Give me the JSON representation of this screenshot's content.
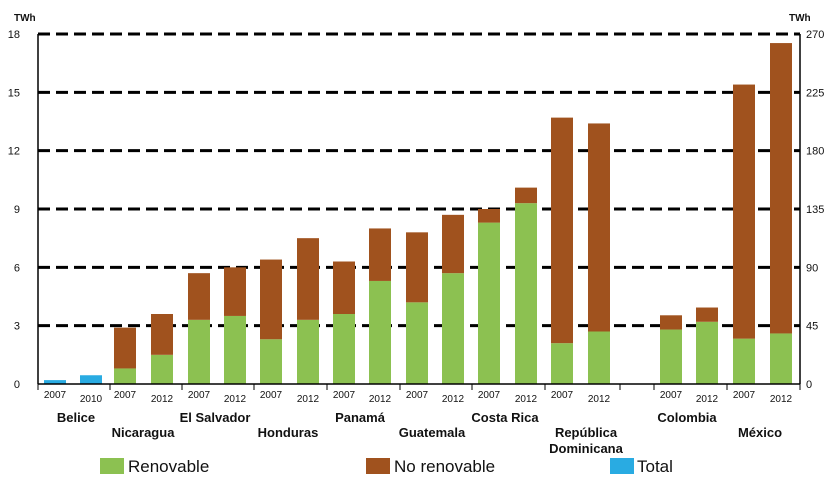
{
  "chart_data": {
    "type": "bar",
    "stacked": true,
    "left_axis": {
      "unit": "TWh",
      "ylim": [
        0,
        18
      ],
      "ticks": [
        0,
        3,
        6,
        9,
        12,
        15,
        18
      ]
    },
    "right_axis": {
      "unit": "TWh",
      "ylim": [
        0,
        270
      ],
      "ticks": [
        0,
        45,
        90,
        135,
        180,
        225,
        270
      ]
    },
    "grid": "dashed-horizontal",
    "legend_position": "bottom",
    "series_colors": {
      "renovable": "#8cc151",
      "no_renovable": "#a0521e",
      "total": "#29abe2"
    },
    "legend": [
      {
        "key": "renovable",
        "label": "Renovable"
      },
      {
        "key": "no_renovable",
        "label": "No renovable"
      },
      {
        "key": "total",
        "label": "Total"
      }
    ],
    "groups": [
      {
        "country": "Belice",
        "axis": "left",
        "label_row": 0,
        "bars": [
          {
            "year": "2007",
            "total": 0.2
          },
          {
            "year": "2010",
            "total": 0.45
          }
        ]
      },
      {
        "country": "Nicaragua",
        "axis": "left",
        "label_row": 1,
        "bars": [
          {
            "year": "2007",
            "renovable": 0.8,
            "no_renovable": 2.1
          },
          {
            "year": "2012",
            "renovable": 1.5,
            "no_renovable": 2.1
          }
        ]
      },
      {
        "country": "El Salvador",
        "axis": "left",
        "label_row": 0,
        "bars": [
          {
            "year": "2007",
            "renovable": 3.3,
            "no_renovable": 2.4
          },
          {
            "year": "2012",
            "renovable": 3.5,
            "no_renovable": 2.5
          }
        ]
      },
      {
        "country": "Honduras",
        "axis": "left",
        "label_row": 1,
        "bars": [
          {
            "year": "2007",
            "renovable": 2.3,
            "no_renovable": 4.1
          },
          {
            "year": "2012",
            "renovable": 3.3,
            "no_renovable": 4.2
          }
        ]
      },
      {
        "country": "Panamá",
        "axis": "left",
        "label_row": 0,
        "bars": [
          {
            "year": "2007",
            "renovable": 3.6,
            "no_renovable": 2.7
          },
          {
            "year": "2012",
            "renovable": 5.3,
            "no_renovable": 2.7
          }
        ]
      },
      {
        "country": "Guatemala",
        "axis": "left",
        "label_row": 1,
        "bars": [
          {
            "year": "2007",
            "renovable": 4.2,
            "no_renovable": 3.6
          },
          {
            "year": "2012",
            "renovable": 5.7,
            "no_renovable": 3.0
          }
        ]
      },
      {
        "country": "Costa Rica",
        "axis": "left",
        "label_row": 0,
        "bars": [
          {
            "year": "2007",
            "renovable": 8.3,
            "no_renovable": 0.7
          },
          {
            "year": "2012",
            "renovable": 9.3,
            "no_renovable": 0.8
          }
        ]
      },
      {
        "country": "República Dominicana",
        "axis": "left",
        "label_row": 1,
        "bars": [
          {
            "year": "2007",
            "renovable": 2.1,
            "no_renovable": 11.6
          },
          {
            "year": "2012",
            "renovable": 2.7,
            "no_renovable": 10.7
          }
        ]
      },
      {
        "country": "Colombia",
        "axis": "right",
        "label_row": 0,
        "bars": [
          {
            "year": "2007",
            "renovable": 42,
            "no_renovable": 11
          },
          {
            "year": "2012",
            "renovable": 48,
            "no_renovable": 11
          }
        ]
      },
      {
        "country": "México",
        "axis": "right",
        "label_row": 1,
        "bars": [
          {
            "year": "2007",
            "renovable": 35,
            "no_renovable": 196
          },
          {
            "year": "2012",
            "renovable": 39,
            "no_renovable": 224
          }
        ]
      }
    ]
  }
}
